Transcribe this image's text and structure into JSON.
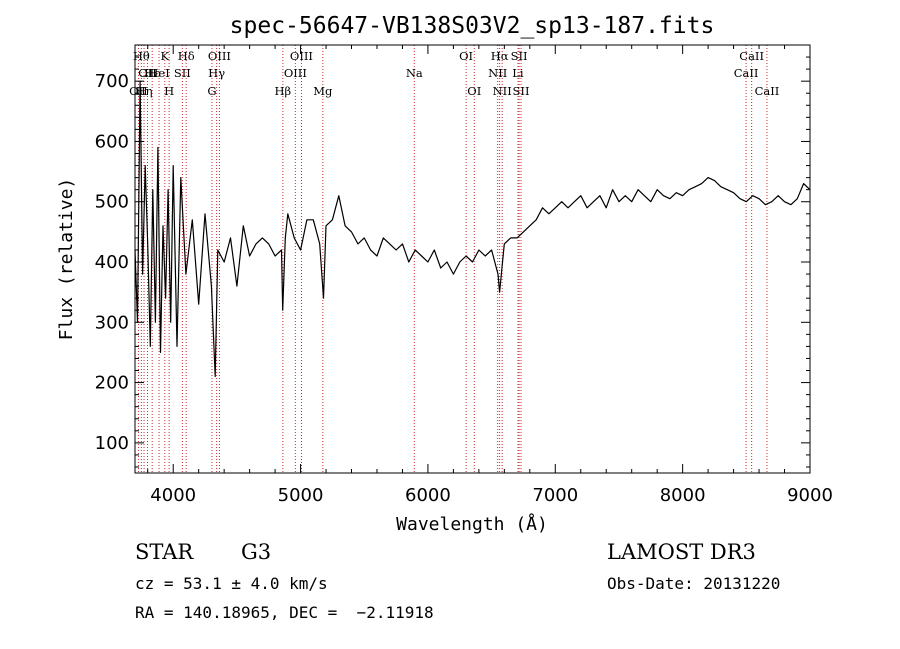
{
  "chart_data": {
    "type": "line",
    "title": "spec-56647-VB138S03V2_sp13-187.fits",
    "xlabel": "Wavelength (Å)",
    "ylabel": "Flux (relative)",
    "xlim": [
      3700,
      9000
    ],
    "ylim": [
      50,
      760
    ],
    "x_ticks": [
      4000,
      5000,
      6000,
      7000,
      8000,
      9000
    ],
    "y_ticks": [
      100,
      200,
      300,
      400,
      500,
      600,
      700
    ],
    "series": [
      {
        "x": [
          3700,
          3720,
          3740,
          3760,
          3780,
          3800,
          3820,
          3840,
          3860,
          3880,
          3900,
          3920,
          3940,
          3960,
          3980,
          4000,
          4030,
          4060,
          4100,
          4150,
          4200,
          4250,
          4300,
          4330,
          4350,
          4400,
          4450,
          4500,
          4550,
          4600,
          4650,
          4700,
          4750,
          4800,
          4850,
          4860,
          4880,
          4900,
          4950,
          5000,
          5050,
          5100,
          5150,
          5180,
          5200,
          5250,
          5300,
          5350,
          5400,
          5450,
          5500,
          5550,
          5600,
          5650,
          5700,
          5750,
          5800,
          5850,
          5900,
          5950,
          6000,
          6050,
          6100,
          6150,
          6200,
          6250,
          6300,
          6350,
          6400,
          6450,
          6500,
          6550,
          6563,
          6600,
          6650,
          6700,
          6750,
          6800,
          6850,
          6900,
          6950,
          7000,
          7050,
          7100,
          7150,
          7200,
          7250,
          7300,
          7350,
          7400,
          7450,
          7500,
          7550,
          7600,
          7650,
          7700,
          7750,
          7800,
          7850,
          7900,
          7950,
          8000,
          8050,
          8100,
          8150,
          8200,
          8250,
          8300,
          8350,
          8400,
          8450,
          8500,
          8550,
          8600,
          8650,
          8700,
          8750,
          8800,
          8850,
          8900,
          8950,
          9000
        ],
        "values": [
          420,
          300,
          700,
          380,
          560,
          430,
          260,
          520,
          300,
          590,
          250,
          460,
          340,
          520,
          300,
          560,
          260,
          540,
          380,
          470,
          330,
          480,
          360,
          210,
          420,
          400,
          440,
          360,
          460,
          410,
          430,
          440,
          430,
          410,
          420,
          320,
          440,
          480,
          440,
          420,
          470,
          470,
          430,
          340,
          460,
          470,
          510,
          460,
          450,
          430,
          440,
          420,
          410,
          440,
          430,
          420,
          430,
          400,
          420,
          410,
          400,
          420,
          390,
          400,
          380,
          400,
          410,
          400,
          420,
          410,
          420,
          380,
          350,
          430,
          440,
          440,
          450,
          460,
          470,
          490,
          480,
          490,
          500,
          490,
          500,
          510,
          490,
          500,
          510,
          490,
          520,
          500,
          510,
          500,
          520,
          510,
          500,
          520,
          510,
          505,
          515,
          510,
          520,
          525,
          530,
          540,
          535,
          525,
          520,
          515,
          505,
          500,
          510,
          505,
          495,
          500,
          510,
          500,
          495,
          505,
          530,
          520
        ]
      }
    ],
    "grid": false,
    "spectral_lines": [
      {
        "wavelength": 3727,
        "label": "OII",
        "row": 3
      },
      {
        "wavelength": 3750,
        "label": "Hθ",
        "row": 1
      },
      {
        "wavelength": 3771,
        "label": "Hη",
        "row": 3
      },
      {
        "wavelength": 3798,
        "label": "OII",
        "row": 2
      },
      {
        "wavelength": 3835,
        "label": "Hε",
        "row": 2
      },
      {
        "wavelength": 3889,
        "label": "HeI",
        "row": 2
      },
      {
        "wavelength": 3934,
        "label": "K",
        "row": 1
      },
      {
        "wavelength": 3968,
        "label": "H",
        "row": 3
      },
      {
        "wavelength": 4072,
        "label": "SII",
        "row": 2
      },
      {
        "wavelength": 4102,
        "label": "Hδ",
        "row": 1
      },
      {
        "wavelength": 4304,
        "label": "G",
        "row": 3
      },
      {
        "wavelength": 4341,
        "label": "Hγ",
        "row": 2
      },
      {
        "wavelength": 4363,
        "label": "OIII",
        "row": 1
      },
      {
        "wavelength": 4861,
        "label": "Hβ",
        "row": 3
      },
      {
        "wavelength": 4959,
        "label": "OIII",
        "row": 2
      },
      {
        "wavelength": 5007,
        "label": "OIII",
        "row": 1
      },
      {
        "wavelength": 5175,
        "label": "Mg",
        "row": 3
      },
      {
        "wavelength": 5893,
        "label": "Na",
        "row": 2
      },
      {
        "wavelength": 6300,
        "label": "OI",
        "row": 1
      },
      {
        "wavelength": 6364,
        "label": "OI",
        "row": 3
      },
      {
        "wavelength": 6548,
        "label": "NII",
        "row": 2
      },
      {
        "wavelength": 6563,
        "label": "Hα",
        "row": 1
      },
      {
        "wavelength": 6583,
        "label": "NII",
        "row": 3
      },
      {
        "wavelength": 6707,
        "label": "Li",
        "row": 2
      },
      {
        "wavelength": 6716,
        "label": "SII",
        "row": 1
      },
      {
        "wavelength": 6731,
        "label": "SII",
        "row": 3
      },
      {
        "wavelength": 8498,
        "label": "CaII",
        "row": 2
      },
      {
        "wavelength": 8542,
        "label": "CaII",
        "row": 1
      },
      {
        "wavelength": 8662,
        "label": "CaII",
        "row": 3
      }
    ],
    "line_color": "#000000",
    "marker_color": "#cc2a2a"
  },
  "info": {
    "class": "STAR",
    "subclass": "G3",
    "survey": "LAMOST DR3",
    "cz": "cz = 53.1 ± 4.0 km/s",
    "obs_date": "Obs-Date: 20131220",
    "radec": "RA = 140.18965, DEC =  −2.11918"
  }
}
